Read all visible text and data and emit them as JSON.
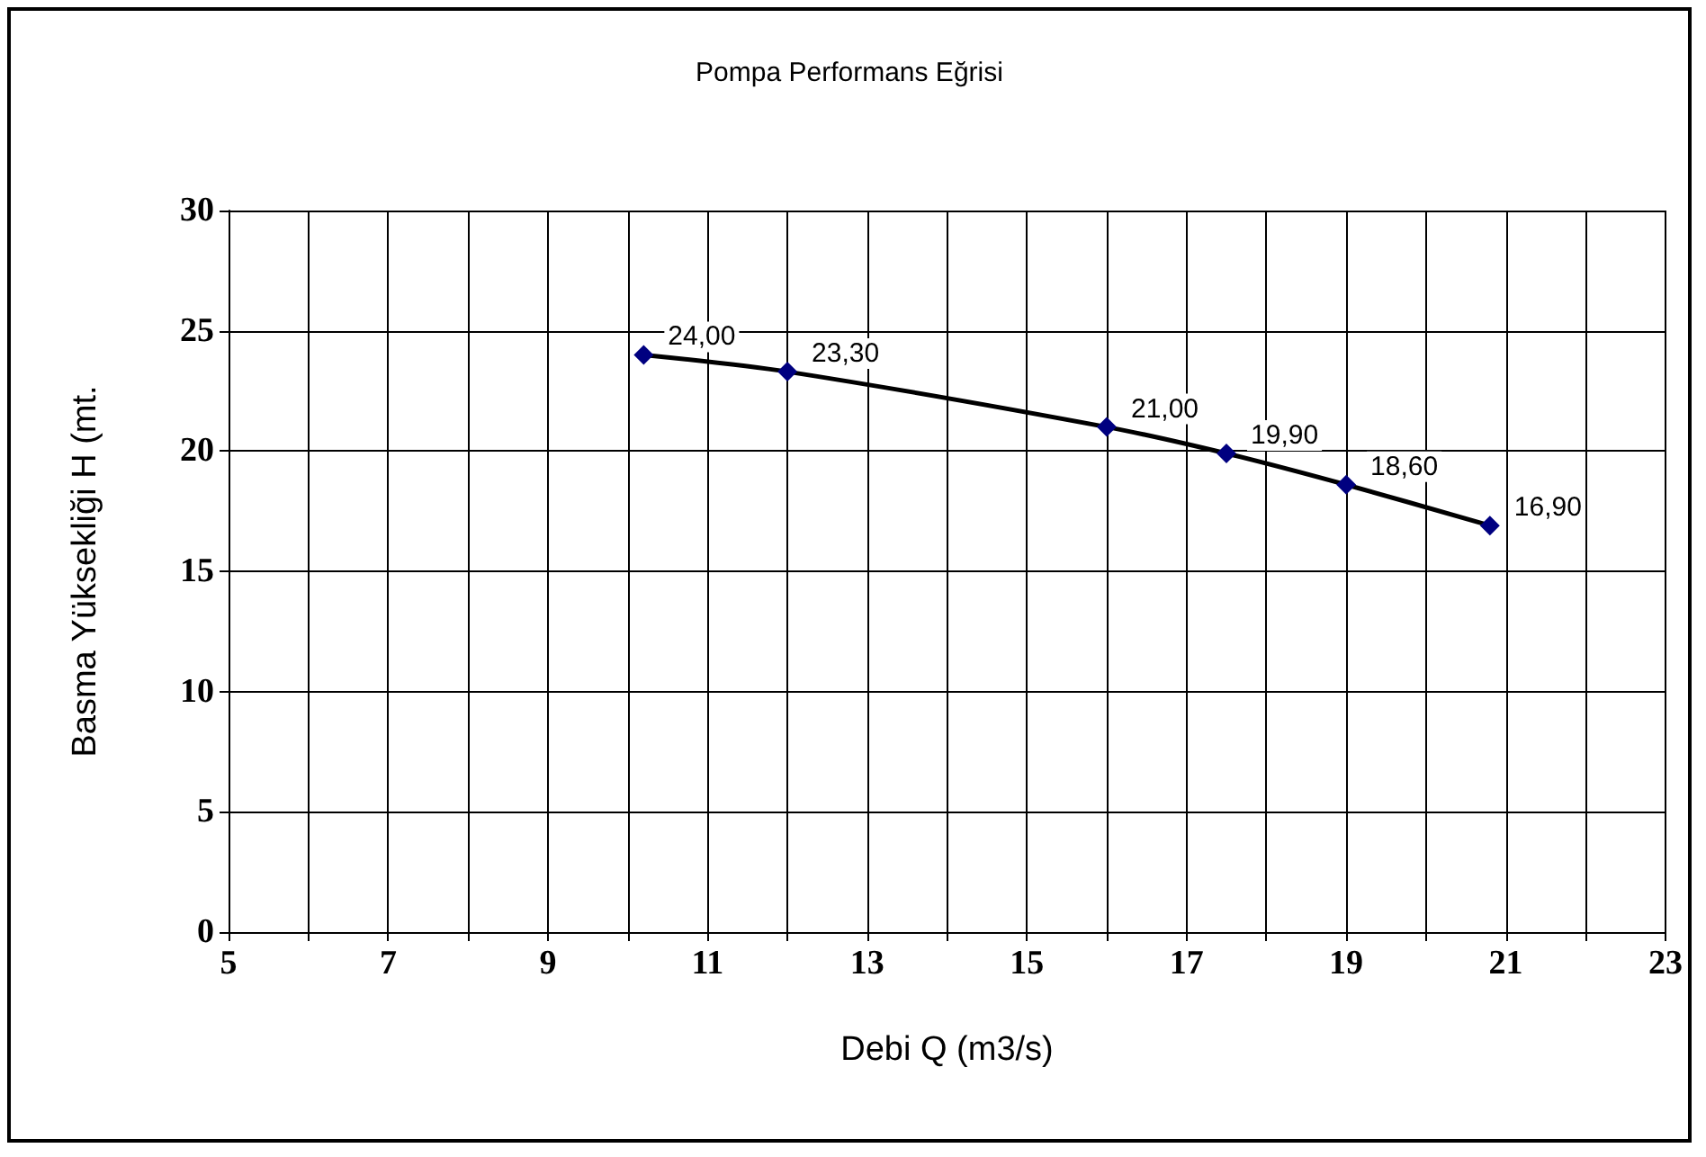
{
  "chart_data": {
    "type": "line",
    "title": "Pompa Performans Eğrisi",
    "xlabel": "Debi Q (m3/s)",
    "ylabel": "Basma Yüksekliği H (mt.",
    "x": [
      10.2,
      12,
      16,
      17.5,
      19,
      20.8
    ],
    "series": [
      {
        "color": "#000080",
        "values": [
          24,
          23.3,
          21,
          19.9,
          18.6,
          16.9
        ],
        "value_labels": [
          "24,00",
          "23,30",
          "21,00",
          "19,90",
          "18,60",
          "16,90"
        ]
      }
    ],
    "xlim": [
      5,
      23
    ],
    "xticks": [
      5,
      {
        "value": 6,
        "label": null
      },
      7,
      {
        "value": 8,
        "label": null
      },
      9,
      {
        "value": 10,
        "label": null
      },
      11,
      {
        "value": 12,
        "label": null
      },
      13,
      {
        "value": 14,
        "label": null
      },
      15,
      {
        "value": 16,
        "label": null
      },
      17,
      {
        "value": 18,
        "label": null
      },
      19,
      {
        "value": 20,
        "label": null
      },
      21,
      {
        "value": 22,
        "label": null
      },
      23
    ],
    "ylim": [
      0,
      30
    ],
    "yticks": [
      0,
      5,
      10,
      15,
      20,
      25,
      30
    ],
    "grid": true,
    "marker": "diamond",
    "line_style": "solid"
  }
}
